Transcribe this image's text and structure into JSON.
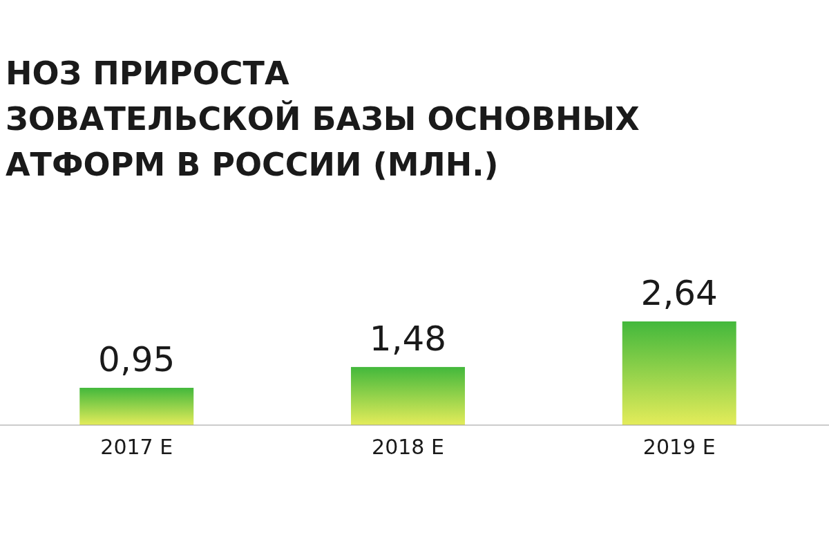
{
  "chart_data": {
    "type": "bar",
    "title": "НОЗ ПРИРОСТА\nЗОВАТЕЛЬСКОЙ БАЗЫ ОСНОВНЫХ\nАТФОРМ В РОССИИ (МЛН.)",
    "categories": [
      "2017 E",
      "2018 E",
      "2019 E"
    ],
    "values": [
      0.95,
      1.48,
      2.64
    ],
    "color": "#43b83c",
    "data_labels": true,
    "value_labels": [
      "0,95",
      "1,48",
      "2,64"
    ]
  }
}
